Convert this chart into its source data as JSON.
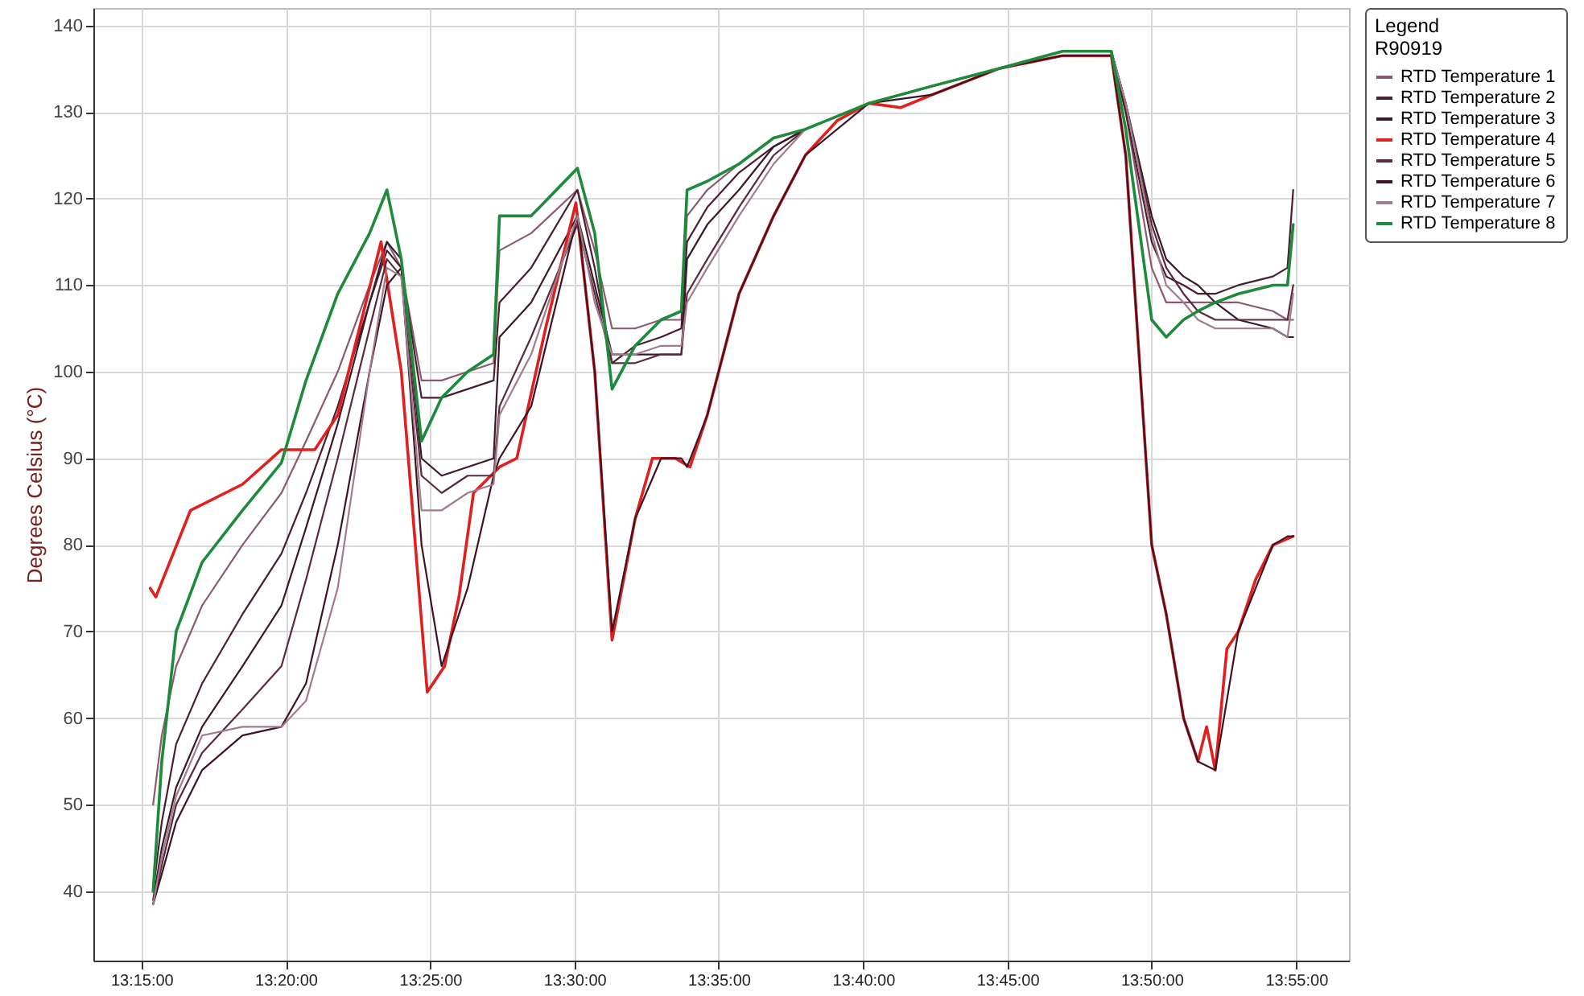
{
  "chart_data": {
    "type": "line",
    "ylabel": "Degrees Celsius (°C)",
    "legend_title": "Legend",
    "annotations": [
      "R90919"
    ],
    "x": [
      13.2567,
      13.2617,
      13.27,
      13.285,
      13.3083,
      13.3308,
      13.345,
      13.3633,
      13.3817,
      13.3917,
      13.4,
      13.4117,
      13.4233,
      13.4383,
      13.4533,
      13.4567,
      13.475,
      13.5017,
      13.5117,
      13.5217,
      13.535,
      13.55,
      13.5617,
      13.565,
      13.5767,
      13.595,
      13.615,
      13.6333,
      13.67,
      13.7067,
      13.745,
      13.7817,
      13.81,
      13.8183,
      13.8333,
      13.8417,
      13.8517,
      13.86,
      13.87,
      13.8833,
      13.9033,
      13.9117,
      13.915
    ],
    "series": [
      {
        "name": "RTD Temperature 1",
        "color": "#8c5a6e",
        "values": [
          50,
          58,
          66,
          73,
          80,
          86,
          92,
          100,
          110,
          115,
          112,
          99,
          99,
          100,
          101,
          114,
          116,
          121,
          114,
          105,
          105,
          106,
          106,
          118,
          121,
          124,
          127,
          128,
          131,
          133,
          135,
          136.5,
          136.5,
          130,
          112,
          108,
          108,
          108,
          108,
          108,
          107,
          106,
          106
        ]
      },
      {
        "name": "RTD Temperature 2",
        "color": "#4a1e2e",
        "values": [
          40,
          48,
          57,
          64,
          72,
          79,
          86,
          96,
          108,
          114,
          112,
          97,
          97,
          98,
          99,
          108,
          112,
          121,
          112,
          101,
          103,
          104,
          105,
          115,
          119,
          123,
          126,
          128,
          131,
          133,
          135,
          137,
          137,
          130,
          115,
          111,
          110,
          109,
          109,
          110,
          111,
          112,
          121
        ]
      },
      {
        "name": "RTD Temperature 3",
        "color": "#3a1a28",
        "values": [
          39,
          45,
          52,
          59,
          66,
          73,
          82,
          94,
          108,
          115,
          113,
          90,
          88,
          89,
          90,
          104,
          108,
          118,
          110,
          102,
          102,
          102,
          102,
          113,
          117,
          121,
          126,
          128,
          131,
          133,
          135,
          137,
          137,
          131,
          118,
          113,
          111,
          110,
          108,
          106,
          105,
          104,
          104
        ]
      },
      {
        "name": "RTD Temperature 4",
        "color": "#e0201e",
        "x": [
          13.255,
          13.2583,
          13.2783,
          13.3083,
          13.3308,
          13.35,
          13.3633,
          13.3883,
          13.4,
          13.415,
          13.425,
          13.4333,
          13.4417,
          13.4567,
          13.4667,
          13.4833,
          13.5008,
          13.5117,
          13.5217,
          13.535,
          13.545,
          13.5583,
          13.5667,
          13.5767,
          13.595,
          13.615,
          13.6333,
          13.6517,
          13.67,
          13.6883,
          13.7067,
          13.745,
          13.7817,
          13.81,
          13.8183,
          13.8333,
          13.8417,
          13.8517,
          13.86,
          13.865,
          13.87,
          13.8767,
          13.8833,
          13.8933,
          13.9033,
          13.915
        ],
        "values": [
          75,
          74,
          84,
          87,
          91,
          91,
          95,
          115,
          100,
          63,
          66,
          74,
          86,
          89,
          90,
          105,
          119.5,
          100,
          69,
          83,
          90,
          90,
          89,
          95,
          109,
          118,
          125,
          129,
          131,
          130.5,
          132,
          135,
          136.5,
          136.5,
          125,
          80,
          72,
          60,
          55,
          59,
          54,
          68,
          70,
          76,
          80,
          81
        ]
      },
      {
        "name": "RTD Temperature 5",
        "color": "#5a2a3c",
        "values": [
          38.5,
          43,
          50,
          56,
          61,
          66,
          76,
          90,
          105,
          113,
          111,
          88,
          86,
          88,
          88,
          96,
          104,
          117,
          109,
          101,
          101,
          102,
          102,
          109,
          113,
          119,
          125,
          128,
          131,
          133,
          135,
          137,
          137,
          131,
          117,
          112,
          109,
          107,
          106,
          106,
          106,
          106,
          110
        ]
      },
      {
        "name": "RTD Temperature 6",
        "color": "#3e1424",
        "values": [
          38.5,
          42,
          48,
          54,
          58,
          59,
          64,
          80,
          100,
          110,
          112,
          80,
          66,
          75,
          88,
          90,
          96,
          118,
          100,
          70,
          83,
          90,
          90,
          89,
          95,
          109,
          118,
          125,
          131,
          132,
          135,
          136.5,
          136.5,
          125,
          80,
          72,
          60,
          55,
          54,
          70,
          80,
          81,
          81
        ]
      },
      {
        "name": "RTD Temperature 7",
        "color": "#a07c8c",
        "values": [
          38.5,
          44,
          51,
          58,
          59,
          59,
          62,
          75,
          100,
          112,
          111,
          84,
          84,
          86,
          87,
          95,
          102,
          118,
          108,
          102,
          102,
          103,
          103,
          108,
          112,
          118,
          124,
          128,
          131,
          133,
          135,
          137,
          137,
          131,
          116,
          110,
          108,
          106,
          105,
          105,
          105,
          104,
          109
        ]
      },
      {
        "name": "RTD Temperature 8",
        "color": "#1e8a3c",
        "values": [
          40,
          55,
          70,
          78,
          84,
          89.5,
          99,
          109,
          116,
          121,
          113,
          92,
          97,
          100,
          102,
          118,
          118,
          123.5,
          116,
          98,
          103,
          106,
          107,
          121,
          122,
          124,
          127,
          128,
          131,
          133,
          135,
          137,
          137,
          128,
          106,
          104,
          106,
          107,
          108,
          109,
          110,
          110,
          117
        ]
      }
    ],
    "xlim": [
      13.2222,
      13.9472
    ],
    "ylim": [
      32,
      142
    ],
    "xticks": [
      {
        "value": 13.25,
        "label": "13:15:00"
      },
      {
        "value": 13.3333,
        "label": "13:20:00"
      },
      {
        "value": 13.4167,
        "label": "13:25:00"
      },
      {
        "value": 13.5,
        "label": "13:30:00"
      },
      {
        "value": 13.5833,
        "label": "13:35:00"
      },
      {
        "value": 13.6667,
        "label": "13:40:00"
      },
      {
        "value": 13.75,
        "label": "13:45:00"
      },
      {
        "value": 13.8333,
        "label": "13:50:00"
      },
      {
        "value": 13.9167,
        "label": "13:55:00"
      }
    ],
    "yticks": [
      40,
      50,
      60,
      70,
      80,
      90,
      100,
      110,
      120,
      130,
      140
    ],
    "grid": true,
    "legend": "top right",
    "line_style": "solid",
    "marker": "none"
  }
}
